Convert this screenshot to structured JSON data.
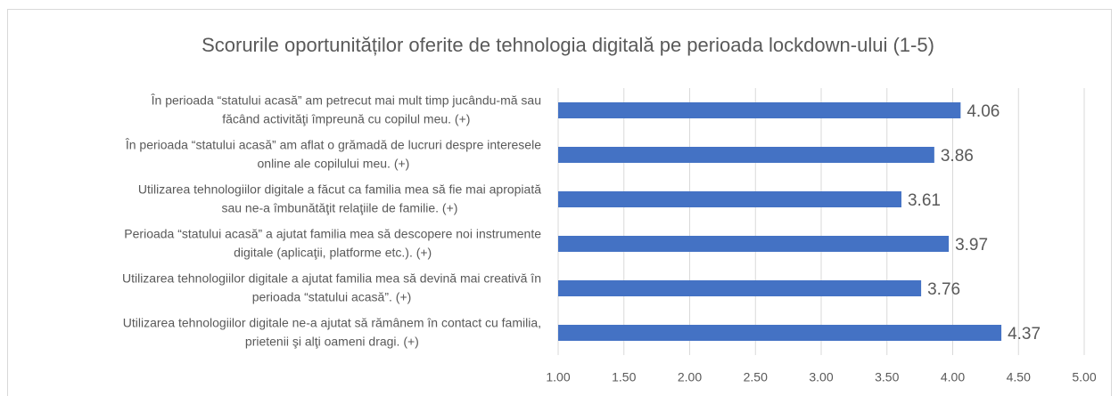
{
  "chart_data": {
    "type": "bar",
    "orientation": "horizontal",
    "title": "Scorurile oportunităților oferite de tehnologia digitală pe perioada lockdown-ului (1-5)",
    "categories": [
      [
        "În perioada “statului acasă” am petrecut mai mult timp jucându-mă sau",
        "făcând activităţi împreună cu copilul meu. (+)"
      ],
      [
        "În perioada “statului acasă” am aflat o grămadă de lucruri despre interesele",
        "online ale copilului meu. (+)"
      ],
      [
        "Utilizarea tehnologiilor digitale a făcut ca familia mea să fie mai apropiată",
        "sau ne-a îmbunătăţit relaţiile de familie. (+)"
      ],
      [
        "Perioada “statului acasă” a ajutat familia mea să descopere noi instrumente",
        "digitale (aplicaţii, platforme etc.). (+)"
      ],
      [
        "Utilizarea tehnologiilor digitale a ajutat familia mea să devină mai creativă  în",
        "perioada “statului acasă”. (+)"
      ],
      [
        "Utilizarea tehnologiilor digitale ne-a ajutat să rămânem în contact cu familia,",
        "prietenii şi alţi oameni dragi. (+)"
      ]
    ],
    "values": [
      4.06,
      3.86,
      3.61,
      3.97,
      3.76,
      4.37
    ],
    "color": "#4472c4",
    "xlim": [
      1,
      5
    ],
    "xticks": [
      {
        "value": 1,
        "label": "1.00"
      },
      {
        "value": 1.5,
        "label": "1.50"
      },
      {
        "value": 2,
        "label": "2.00"
      },
      {
        "value": 2.5,
        "label": "2.50"
      },
      {
        "value": 3,
        "label": "3.00"
      },
      {
        "value": 3.5,
        "label": "3.50"
      },
      {
        "value": 4,
        "label": "4.00"
      },
      {
        "value": 4.5,
        "label": "4.50"
      },
      {
        "value": 5,
        "label": "5.00"
      }
    ],
    "grid": true
  }
}
